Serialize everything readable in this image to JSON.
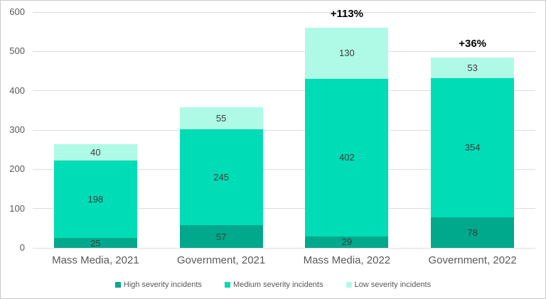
{
  "chart_data": {
    "type": "bar",
    "stacked": true,
    "title": "",
    "xlabel": "",
    "ylabel": "",
    "ylim": [
      0,
      600
    ],
    "ytick_step": 100,
    "grid": true,
    "legend_position": "bottom",
    "categories": [
      "Mass Media, 2021",
      "Government, 2021",
      "Mass Media, 2022",
      "Government, 2022"
    ],
    "series": [
      {
        "name": "High severity incidents",
        "key": "high",
        "color": "#00a88c",
        "values": [
          25,
          57,
          29,
          78
        ]
      },
      {
        "name": "Medium severity incidents",
        "key": "medium",
        "color": "#00dcb5",
        "values": [
          198,
          245,
          402,
          354
        ]
      },
      {
        "name": "Low severity incidents",
        "key": "low",
        "color": "#affae6",
        "values": [
          40,
          55,
          130,
          53
        ]
      }
    ],
    "annotations": [
      "",
      "",
      "+113%",
      "+36%"
    ],
    "totals": [
      263,
      357,
      561,
      485
    ]
  },
  "style": {
    "gridline_color": "#dcdcdc",
    "axis_text_color": "#595959",
    "data_label_color": "#3b3b3b",
    "annotation_color": "#000000",
    "background_color": "#ffffff",
    "border_color": "#c9c9c9"
  }
}
